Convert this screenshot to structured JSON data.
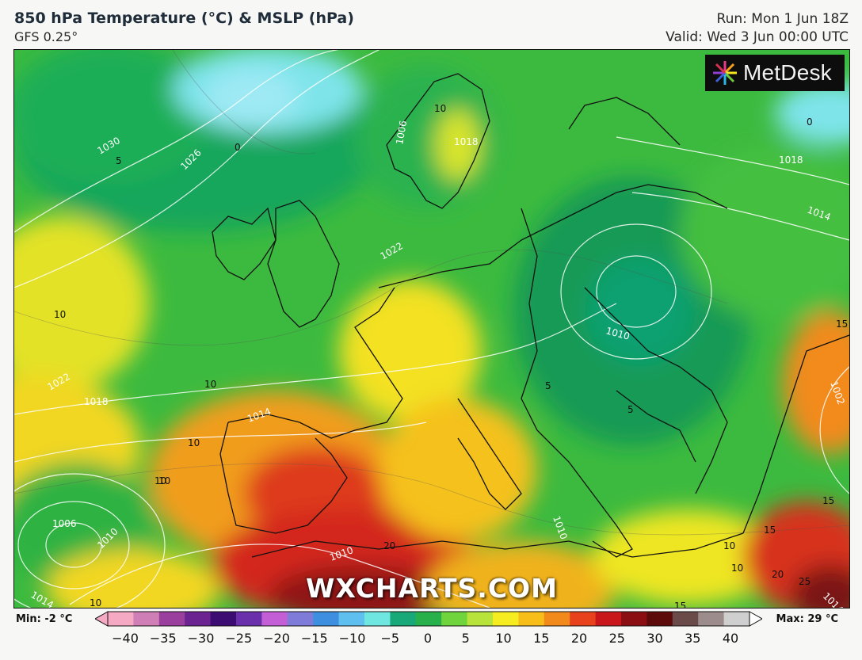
{
  "header": {
    "title": "850 hPa Temperature (°C) & MSLP (hPa)",
    "model": "GFS 0.25°",
    "run": "Run: Mon 1 Jun 18Z",
    "valid": "Valid: Wed 3 Jun 00:00 UTC"
  },
  "logo": {
    "text": "MetDesk",
    "icon": "flower-burst-icon"
  },
  "watermark": "WXCHARTS.COM",
  "legend": {
    "min_label": "Min: -2 °C",
    "max_label": "Max: 29 °C",
    "ticks": [
      "−40",
      "−35",
      "−30",
      "−25",
      "−20",
      "−15",
      "−10",
      "−5",
      "0",
      "5",
      "10",
      "15",
      "20",
      "25",
      "30",
      "35",
      "40"
    ],
    "colors": [
      "#f6a9c3",
      "#d07fb6",
      "#9a3f9e",
      "#6a2390",
      "#3d0c72",
      "#6a2faa",
      "#c45ed6",
      "#7e7cd8",
      "#3f8fe0",
      "#5fc0f0",
      "#6fe6e0",
      "#19a877",
      "#28b04b",
      "#70d43d",
      "#b7e33a",
      "#f6ed20",
      "#f7bd18",
      "#f28a1b",
      "#e8421c",
      "#c8161a",
      "#8b0f12",
      "#5c0a0a",
      "#6b4a4a",
      "#9c8c8c",
      "#cfcfcf"
    ]
  },
  "map": {
    "isobar_labels": [
      "1030",
      "1026",
      "1022",
      "1018",
      "1014",
      "1010",
      "1006",
      "1002",
      "1018",
      "1014",
      "1010",
      "1018",
      "1014",
      "1010",
      "1010",
      "1006",
      "1014",
      "1022"
    ],
    "isotherm_labels": [
      "0",
      "5",
      "10",
      "10",
      "10",
      "10",
      "10",
      "10",
      "10",
      "15",
      "15",
      "20",
      "20",
      "25",
      "15",
      "15",
      "10",
      "10",
      "0",
      "5",
      "5"
    ]
  }
}
